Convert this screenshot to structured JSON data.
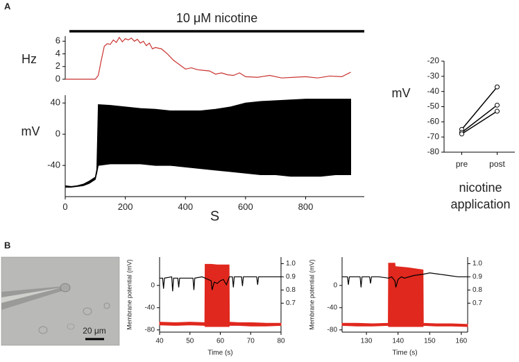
{
  "panel_labels": [
    "A",
    "B"
  ],
  "image": {
    "scale_bar": "20 μm"
  },
  "chart_data": [
    {
      "type": "line",
      "ylabel": "Hz",
      "annotation": "10 μM nicotine",
      "annotation_span": [
        14,
        995
      ],
      "x": [
        0,
        20,
        40,
        60,
        80,
        100,
        110,
        120,
        130,
        140,
        150,
        160,
        170,
        180,
        190,
        200,
        210,
        220,
        230,
        240,
        250,
        260,
        270,
        280,
        290,
        300,
        320,
        340,
        360,
        380,
        400,
        420,
        440,
        460,
        480,
        500,
        520,
        540,
        560,
        580,
        600,
        640,
        680,
        720,
        760,
        800,
        840,
        880,
        920,
        950
      ],
      "series": [
        {
          "color": "#c8322f",
          "values": [
            0,
            0,
            0,
            0,
            0,
            0,
            0.6,
            3,
            5.2,
            5.6,
            5.5,
            6.2,
            5.8,
            6.6,
            5.9,
            6.4,
            6.2,
            6.5,
            6,
            6.3,
            5.7,
            6,
            5.3,
            5.7,
            4.8,
            5,
            4.8,
            4,
            3,
            2.3,
            1.6,
            1.8,
            1.5,
            1.4,
            1.3,
            0.8,
            1,
            0.7,
            0.6,
            1,
            0.4,
            0.3,
            0.6,
            0.2,
            0.3,
            0.4,
            0.2,
            0.5,
            0.4,
            1.1
          ]
        }
      ],
      "xlim": [
        0,
        995
      ],
      "ylim": [
        0,
        6.8
      ],
      "yticks": [
        0,
        2,
        4,
        6
      ]
    },
    {
      "type": "line",
      "ylabel": "mV",
      "xlabel": "S",
      "x": [
        0,
        20,
        40,
        60,
        80,
        100,
        105,
        110,
        150,
        200,
        250,
        300,
        350,
        400,
        450,
        500,
        550,
        600,
        650,
        700,
        750,
        800,
        850,
        900,
        950
      ],
      "series": [
        {
          "color": "#000000",
          "upper": [
            -66,
            -67,
            -66,
            -64,
            -60,
            -55,
            -45,
            38,
            37,
            35,
            33,
            32,
            30,
            30,
            30,
            32,
            35,
            40,
            42,
            43,
            44,
            45,
            45,
            45,
            45
          ],
          "lower": [
            -68,
            -68,
            -67,
            -66,
            -63,
            -58,
            -50,
            -40,
            -38,
            -38,
            -38,
            -40,
            -40,
            -42,
            -44,
            -46,
            -48,
            -50,
            -52,
            -52,
            -54,
            -54,
            -54,
            -52,
            -52
          ]
        }
      ],
      "xlim": [
        0,
        995
      ],
      "ylim": [
        -80,
        50
      ],
      "xticks": [
        0,
        200,
        400,
        600,
        800
      ],
      "yticks": [
        -40,
        0,
        40
      ]
    },
    {
      "type": "line",
      "ylabel": "mV",
      "xlabel": "nicotine application",
      "categories": [
        "pre",
        "post"
      ],
      "marker": "circle",
      "series": [
        {
          "color": "#000000",
          "values": [
            -65,
            -37
          ]
        },
        {
          "color": "#000000",
          "values": [
            -67,
            -49
          ]
        },
        {
          "color": "#000000",
          "values": [
            -68,
            -53
          ]
        }
      ],
      "ylim": [
        -80,
        -20
      ],
      "yticks": [
        -80,
        -70,
        -60,
        -50,
        -40,
        -30,
        -20
      ]
    },
    {
      "type": "line",
      "ylabel": "Membrane potential (mV)",
      "xlabel": "Time (s)",
      "series": [
        {
          "color": "#e0281e",
          "x": [
            40,
            45,
            50,
            54.9,
            55,
            57,
            59,
            61,
            62.9,
            63,
            66,
            70,
            75,
            80
          ],
          "upper": [
            -66,
            -67,
            -66,
            -67,
            38,
            38,
            37,
            37,
            37,
            -66,
            -67,
            -67,
            -68,
            -68
          ],
          "lower": [
            -71,
            -72,
            -71,
            -72,
            -74,
            -74,
            -74,
            -74,
            -74,
            -72,
            -72,
            -73,
            -73,
            -72
          ]
        },
        {
          "color": "#000000",
          "axis": "y2",
          "x": [
            40,
            41,
            41.3,
            41.6,
            44,
            44.3,
            44.6,
            46,
            46.3,
            46.6,
            49,
            51,
            51.3,
            51.6,
            54,
            55,
            57,
            57.3,
            58,
            59,
            60,
            61,
            62,
            63,
            64,
            64.3,
            64.6,
            66,
            67,
            67.3,
            67.6,
            70,
            72,
            72.3,
            72.6,
            75,
            78,
            80
          ],
          "values": [
            0.89,
            0.89,
            0.81,
            0.89,
            0.9,
            0.79,
            0.89,
            0.89,
            0.82,
            0.89,
            0.89,
            0.89,
            0.8,
            0.89,
            0.9,
            0.89,
            0.87,
            0.8,
            0.86,
            0.85,
            0.87,
            0.88,
            0.84,
            0.9,
            0.9,
            0.82,
            0.9,
            0.9,
            0.9,
            0.83,
            0.9,
            0.9,
            0.9,
            0.84,
            0.9,
            0.9,
            0.9,
            0.9
          ]
        }
      ],
      "xlim": [
        40,
        80
      ],
      "ylim": [
        -84,
        51
      ],
      "y2lim": [
        0.48,
        1.05
      ],
      "xticks": [
        40,
        50,
        60,
        70,
        80
      ],
      "yticks": [
        -80,
        -40,
        0
      ],
      "y2ticks": [
        0.7,
        0.8,
        0.9,
        {
          "value": 1,
          "label": "1.0"
        }
      ]
    },
    {
      "type": "line",
      "ylabel": "Membrane potential (mV)",
      "xlabel": "Time (s)",
      "series": [
        {
          "color": "#e0281e",
          "x": [
            122.3,
            127,
            132,
            136.9,
            137,
            139,
            139.1,
            143,
            147.9,
            148,
            152,
            157,
            162
          ],
          "upper": [
            -68,
            -68,
            -69,
            -68,
            40,
            40,
            34,
            32,
            28,
            -68,
            -69,
            -69,
            -70
          ],
          "lower": [
            -72,
            -73,
            -73,
            -72,
            -74,
            -74,
            -74,
            -74,
            -74,
            -72,
            -73,
            -73,
            -74
          ]
        },
        {
          "color": "#000000",
          "axis": "y2",
          "x": [
            122.3,
            124,
            124.3,
            124.6,
            128,
            128.3,
            128.6,
            131,
            131.3,
            131.6,
            134,
            137,
            138,
            139,
            139.3,
            140,
            141,
            142,
            145,
            148,
            150,
            153,
            156,
            159,
            162
          ],
          "values": [
            0.9,
            0.9,
            0.84,
            0.9,
            0.9,
            0.82,
            0.9,
            0.9,
            0.85,
            0.9,
            0.9,
            0.89,
            0.9,
            0.87,
            0.82,
            0.88,
            0.9,
            0.89,
            0.91,
            0.92,
            0.93,
            0.92,
            0.91,
            0.9,
            0.9
          ]
        }
      ],
      "xlim": [
        122.3,
        162
      ],
      "ylim": [
        -84,
        51
      ],
      "y2lim": [
        0.48,
        1.05
      ],
      "xticks": [
        130,
        140,
        150,
        160
      ],
      "yticks": [
        -80,
        -40,
        0
      ],
      "y2ticks": [
        0.7,
        0.8,
        0.9,
        {
          "value": 1,
          "label": "1.0"
        }
      ]
    }
  ]
}
